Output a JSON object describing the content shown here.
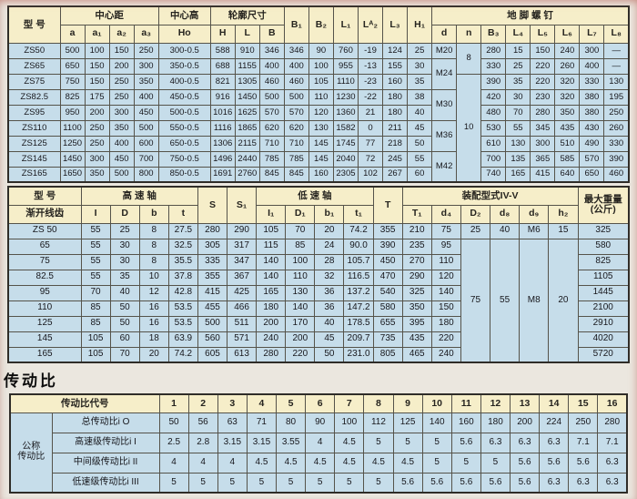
{
  "section_title": "传动比",
  "colors": {
    "page_bg": "#ebe7df",
    "header_bg": "#f6eec9",
    "row_bg": "#c6ddea",
    "border": "#55534a",
    "text": "#17171c"
  },
  "table1": {
    "header": [
      [
        {
          "t": "型  号",
          "rs": 2
        },
        {
          "t": "中心距",
          "cs": 4
        },
        {
          "t": "中心高"
        },
        {
          "t": "轮廓尺寸",
          "cs": 3
        },
        {
          "t": "B₁",
          "rs": 2
        },
        {
          "t": "B₂",
          "rs": 2
        },
        {
          "t": "L₁",
          "rs": 2
        },
        {
          "t": "Lᴬ₂",
          "rs": 2
        },
        {
          "t": "L₃",
          "rs": 2
        },
        {
          "t": "H₁",
          "rs": 2
        },
        {
          "t": "地 脚 螺 钉",
          "cs": 8
        }
      ],
      [
        "a",
        "a₁",
        "a₂",
        "a₃",
        "Ho",
        "H",
        "L",
        "B",
        "d",
        "n",
        "B₃",
        "L₄",
        "L₅",
        "L₆",
        "L₇",
        "L₈"
      ]
    ],
    "rows": [
      [
        "ZS50",
        500,
        100,
        150,
        250,
        "300-0.5",
        588,
        910,
        346,
        346,
        90,
        760,
        "-19",
        124,
        25,
        "M20",
        {
          "t": 8,
          "rs": 2
        },
        280,
        15,
        150,
        240,
        300,
        "—"
      ],
      [
        "ZS65",
        650,
        150,
        200,
        300,
        "350-0.5",
        688,
        1155,
        400,
        400,
        100,
        955,
        "-13",
        155,
        30,
        {
          "t": "M24",
          "rs": 2
        },
        330,
        25,
        220,
        260,
        400,
        "—"
      ],
      [
        "ZS75",
        750,
        150,
        250,
        350,
        "400-0.5",
        821,
        1305,
        460,
        460,
        105,
        1110,
        "-23",
        160,
        35,
        {
          "t": 10,
          "rs": 7
        },
        390,
        35,
        220,
        320,
        330,
        130
      ],
      [
        "ZS82.5",
        825,
        175,
        250,
        400,
        "450-0.5",
        916,
        1450,
        500,
        500,
        110,
        1230,
        "-22",
        180,
        38,
        {
          "t": "M30",
          "rs": 2
        },
        420,
        30,
        230,
        320,
        380,
        195
      ],
      [
        "ZS95",
        950,
        200,
        300,
        450,
        "500-0.5",
        1016,
        1625,
        570,
        570,
        120,
        1360,
        21,
        180,
        40,
        480,
        70,
        280,
        350,
        380,
        250
      ],
      [
        "ZS110",
        1100,
        250,
        350,
        500,
        "550-0.5",
        1116,
        1865,
        620,
        620,
        130,
        1582,
        0,
        211,
        45,
        {
          "t": "M36",
          "rs": 2
        },
        530,
        55,
        345,
        435,
        430,
        260
      ],
      [
        "ZS125",
        1250,
        250,
        400,
        600,
        "650-0.5",
        1306,
        2115,
        710,
        710,
        145,
        1745,
        77,
        218,
        50,
        610,
        130,
        300,
        510,
        490,
        330
      ],
      [
        "ZS145",
        1450,
        300,
        450,
        700,
        "750-0.5",
        1496,
        2440,
        785,
        785,
        145,
        2040,
        72,
        245,
        55,
        {
          "t": "M42",
          "rs": 2
        },
        700,
        135,
        365,
        585,
        570,
        390
      ],
      [
        "ZS165",
        1650,
        350,
        500,
        800,
        "850-0.5",
        1691,
        2760,
        845,
        845,
        160,
        2305,
        102,
        267,
        60,
        740,
        165,
        415,
        640,
        650,
        460
      ]
    ]
  },
  "table2": {
    "header": [
      [
        {
          "t": "型  号"
        },
        {
          "t": "高 速 轴",
          "cs": 4
        },
        {
          "t": "S",
          "rs": 2
        },
        {
          "t": "S₁",
          "rs": 2
        },
        {
          "t": "低 速 轴",
          "cs": 4
        },
        {
          "t": "T",
          "rs": 2
        },
        {
          "t": "装配型式IV-V",
          "cs": 6
        },
        {
          "t": "最大重量\n(公斤)",
          "rs": 2
        }
      ],
      [
        {
          "t": "渐开线齿"
        },
        "I",
        "D",
        "b",
        "t",
        "I₁",
        "D₁",
        "b₁",
        "t₁",
        "T₁",
        "d₄",
        "D₂",
        "d₈",
        "d₉",
        "h₂"
      ]
    ],
    "rows": [
      [
        "ZS 50",
        55,
        25,
        8,
        27.5,
        280,
        290,
        105,
        70,
        20,
        74.2,
        355,
        210,
        75,
        25,
        40,
        "M6",
        15,
        325
      ],
      [
        65,
        55,
        30,
        8,
        32.5,
        305,
        317,
        115,
        85,
        24,
        "90.0",
        390,
        235,
        95,
        {
          "t": 75,
          "rs": 8
        },
        {
          "t": 55,
          "rs": 8
        },
        {
          "t": "M8",
          "rs": 8
        },
        {
          "t": 20,
          "rs": 8
        },
        580
      ],
      [
        75,
        55,
        30,
        8,
        35.5,
        335,
        347,
        140,
        100,
        28,
        105.7,
        450,
        270,
        110,
        825
      ],
      [
        82.5,
        55,
        35,
        10,
        37.8,
        355,
        367,
        140,
        110,
        32,
        116.5,
        470,
        290,
        120,
        1105
      ],
      [
        95,
        70,
        40,
        12,
        42.8,
        415,
        425,
        165,
        130,
        36,
        137.2,
        540,
        325,
        140,
        1445
      ],
      [
        110,
        85,
        50,
        16,
        53.5,
        455,
        466,
        180,
        140,
        36,
        147.2,
        580,
        350,
        150,
        2100
      ],
      [
        125,
        85,
        50,
        16,
        53.5,
        500,
        511,
        200,
        170,
        40,
        178.5,
        655,
        395,
        180,
        2910
      ],
      [
        145,
        105,
        60,
        18,
        63.9,
        560,
        571,
        240,
        200,
        45,
        209.7,
        735,
        435,
        220,
        4020
      ],
      [
        165,
        105,
        70,
        20,
        74.2,
        605,
        613,
        280,
        220,
        50,
        "231.0",
        805,
        465,
        240,
        5720
      ]
    ]
  },
  "table3": {
    "header": [
      [
        {
          "t": "传动比代号",
          "cs": 2
        },
        1,
        2,
        3,
        4,
        5,
        6,
        7,
        8,
        9,
        10,
        11,
        12,
        13,
        14,
        15,
        16
      ]
    ],
    "rows": [
      [
        {
          "t": "公称\n传动比",
          "rs": 4
        },
        {
          "t": "总传动比i O"
        },
        50,
        56,
        63,
        71,
        80,
        90,
        100,
        112,
        125,
        140,
        160,
        180,
        200,
        224,
        250,
        280
      ],
      [
        {
          "t": "高速级传动比i I"
        },
        2.5,
        2.8,
        3.15,
        3.15,
        3.55,
        4,
        4.5,
        5,
        5,
        5,
        5.6,
        6.3,
        6.3,
        6.3,
        7.1,
        7.1
      ],
      [
        {
          "t": "中间级传动比i II"
        },
        4,
        4,
        4,
        4.5,
        4.5,
        4.5,
        4.5,
        4.5,
        4.5,
        5,
        5,
        5,
        5.6,
        5.6,
        5.6,
        6.3
      ],
      [
        {
          "t": "低速级传动比i III"
        },
        5,
        5,
        5,
        5,
        5,
        5,
        5,
        5,
        5.6,
        5.6,
        5.6,
        5.6,
        5.6,
        6.3,
        6.3,
        6.3
      ]
    ]
  }
}
